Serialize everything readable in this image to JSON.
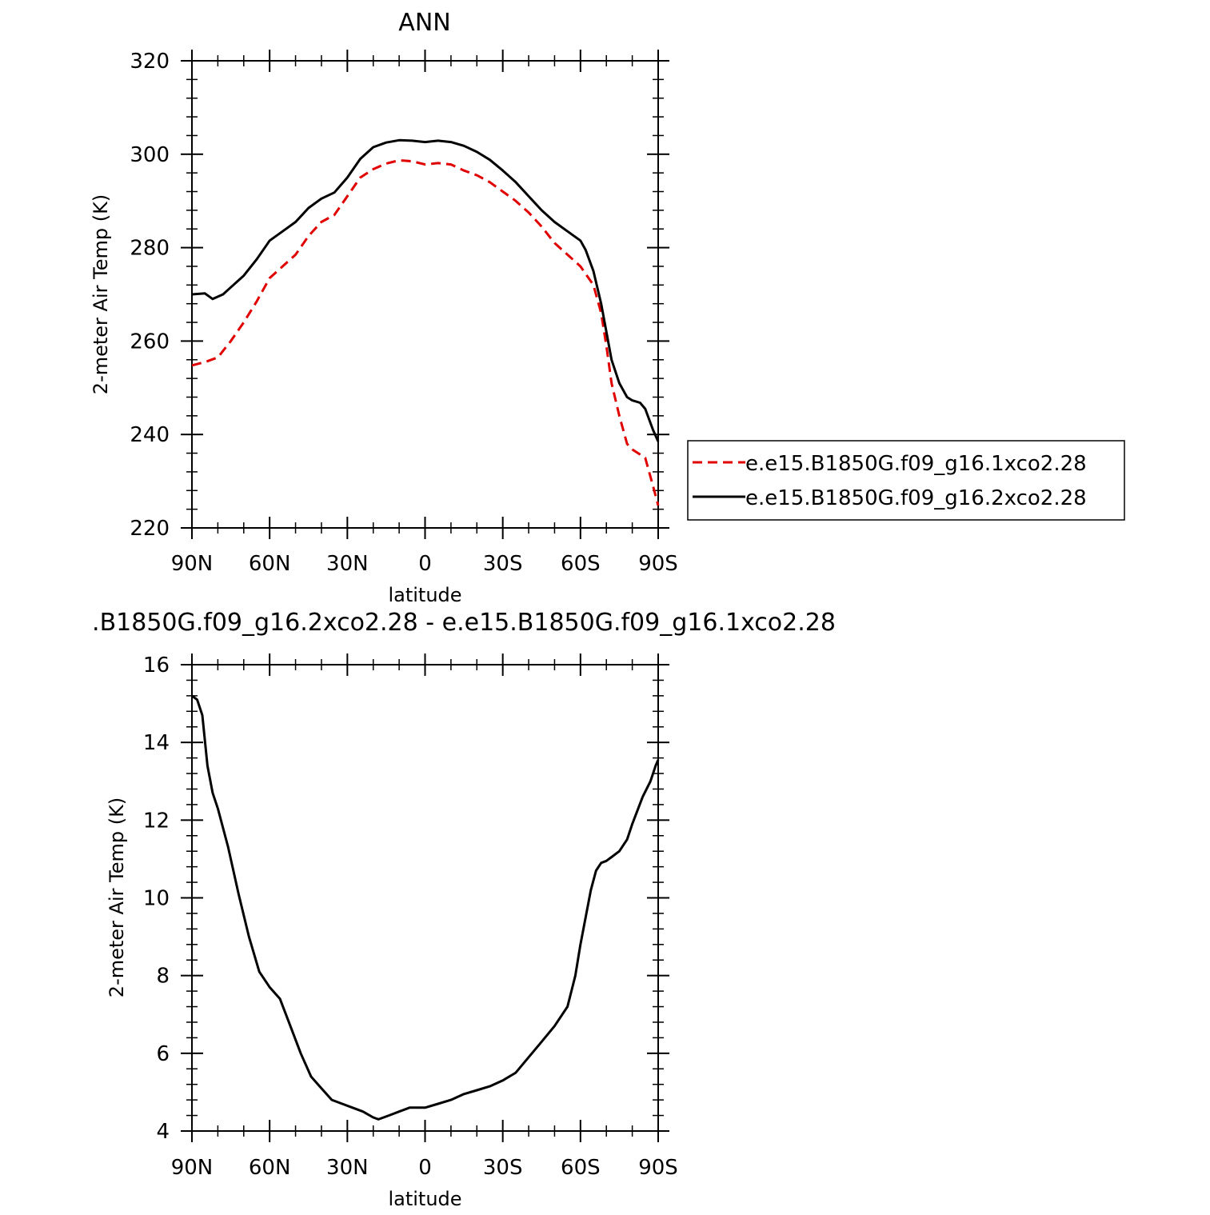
{
  "chart_data": [
    {
      "type": "line",
      "title": "ANN",
      "xlabel": "latitude",
      "ylabel": "2-meter Air Temp (K)",
      "xlim": [
        90,
        -90
      ],
      "ylim": [
        220,
        320
      ],
      "x_ticks": [
        90,
        60,
        30,
        0,
        -30,
        -60,
        -90
      ],
      "x_tick_labels": [
        "90N",
        "60N",
        "30N",
        "0",
        "30S",
        "60S",
        "90S"
      ],
      "y_ticks": [
        220,
        240,
        260,
        280,
        300,
        320
      ],
      "y_tick_labels": [
        "220",
        "240",
        "260",
        "280",
        "300",
        "320"
      ],
      "legend_position": "right",
      "series": [
        {
          "name": "e.e15.B1850G.f09_g16.1xco2.28",
          "color": "#e00000",
          "dash": "dashed",
          "points": [
            [
              90,
              254.8
            ],
            [
              85,
              255.5
            ],
            [
              80,
              256.5
            ],
            [
              75,
              260
            ],
            [
              70,
              264
            ],
            [
              65,
              268.5
            ],
            [
              60,
              273.5
            ],
            [
              55,
              276
            ],
            [
              50,
              278.5
            ],
            [
              45,
              282.5
            ],
            [
              40,
              285.5
            ],
            [
              35,
              287
            ],
            [
              30,
              291
            ],
            [
              25,
              295
            ],
            [
              20,
              296.8
            ],
            [
              15,
              298
            ],
            [
              10,
              298.7
            ],
            [
              5,
              298.5
            ],
            [
              0,
              297.8
            ],
            [
              -5,
              298.1
            ],
            [
              -10,
              297.8
            ],
            [
              -15,
              296.5
            ],
            [
              -20,
              295.5
            ],
            [
              -25,
              294
            ],
            [
              -30,
              292
            ],
            [
              -35,
              290
            ],
            [
              -40,
              287.5
            ],
            [
              -45,
              284.5
            ],
            [
              -50,
              281
            ],
            [
              -55,
              278.5
            ],
            [
              -60,
              276
            ],
            [
              -65,
              272
            ],
            [
              -68,
              266
            ],
            [
              -70,
              259
            ],
            [
              -72,
              251
            ],
            [
              -75,
              244
            ],
            [
              -78,
              238
            ],
            [
              -80,
              236.8
            ],
            [
              -85,
              235
            ],
            [
              -88,
              229
            ],
            [
              -90,
              224.8
            ]
          ]
        },
        {
          "name": "e.e15.B1850G.f09_g16.2xco2.28",
          "color": "#000000",
          "dash": "solid",
          "points": [
            [
              90,
              270
            ],
            [
              85,
              270.2
            ],
            [
              82,
              269
            ],
            [
              78,
              270
            ],
            [
              75,
              271.5
            ],
            [
              70,
              274
            ],
            [
              65,
              277.5
            ],
            [
              60,
              281.5
            ],
            [
              55,
              283.5
            ],
            [
              50,
              285.5
            ],
            [
              45,
              288.5
            ],
            [
              40,
              290.5
            ],
            [
              35,
              291.8
            ],
            [
              30,
              295
            ],
            [
              25,
              299
            ],
            [
              20,
              301.5
            ],
            [
              15,
              302.5
            ],
            [
              10,
              303
            ],
            [
              5,
              302.9
            ],
            [
              0,
              302.6
            ],
            [
              -5,
              302.9
            ],
            [
              -10,
              302.6
            ],
            [
              -15,
              301.8
            ],
            [
              -20,
              300.5
            ],
            [
              -25,
              298.8
            ],
            [
              -30,
              296.5
            ],
            [
              -35,
              294
            ],
            [
              -40,
              291
            ],
            [
              -45,
              288
            ],
            [
              -50,
              285.5
            ],
            [
              -55,
              283.5
            ],
            [
              -60,
              281.5
            ],
            [
              -62,
              279.5
            ],
            [
              -65,
              275
            ],
            [
              -68,
              268
            ],
            [
              -70,
              262
            ],
            [
              -72,
              256
            ],
            [
              -75,
              251
            ],
            [
              -78,
              248
            ],
            [
              -80,
              247.3
            ],
            [
              -83,
              246.8
            ],
            [
              -85,
              245.5
            ],
            [
              -88,
              241
            ],
            [
              -90,
              238.5
            ]
          ]
        }
      ]
    },
    {
      "type": "line",
      "title": ".B1850G.f09_g16.2xco2.28 - e.e15.B1850G.f09_g16.1xco2.28",
      "xlabel": "latitude",
      "ylabel": "2-meter Air Temp (K)",
      "xlim": [
        90,
        -90
      ],
      "ylim": [
        4,
        16
      ],
      "x_ticks": [
        90,
        60,
        30,
        0,
        -30,
        -60,
        -90
      ],
      "x_tick_labels": [
        "90N",
        "60N",
        "30N",
        "0",
        "30S",
        "60S",
        "90S"
      ],
      "y_ticks": [
        4,
        6,
        8,
        10,
        12,
        14,
        16
      ],
      "y_tick_labels": [
        "4",
        "6",
        "8",
        "10",
        "12",
        "14",
        "16"
      ],
      "series": [
        {
          "color": "#000000",
          "dash": "solid",
          "points": [
            [
              90,
              15.2
            ],
            [
              88,
              15.1
            ],
            [
              86,
              14.7
            ],
            [
              84,
              13.4
            ],
            [
              82,
              12.7
            ],
            [
              80,
              12.3
            ],
            [
              76,
              11.3
            ],
            [
              72,
              10.1
            ],
            [
              68,
              9.0
            ],
            [
              64,
              8.1
            ],
            [
              60,
              7.7
            ],
            [
              56,
              7.4
            ],
            [
              52,
              6.7
            ],
            [
              48,
              6.0
            ],
            [
              44,
              5.4
            ],
            [
              40,
              5.1
            ],
            [
              36,
              4.8
            ],
            [
              32,
              4.7
            ],
            [
              28,
              4.6
            ],
            [
              24,
              4.5
            ],
            [
              20,
              4.35
            ],
            [
              18,
              4.3
            ],
            [
              14,
              4.4
            ],
            [
              10,
              4.5
            ],
            [
              6,
              4.6
            ],
            [
              0,
              4.6
            ],
            [
              -5,
              4.7
            ],
            [
              -10,
              4.8
            ],
            [
              -15,
              4.95
            ],
            [
              -20,
              5.05
            ],
            [
              -25,
              5.15
            ],
            [
              -30,
              5.3
            ],
            [
              -35,
              5.5
            ],
            [
              -40,
              5.9
            ],
            [
              -45,
              6.3
            ],
            [
              -50,
              6.7
            ],
            [
              -55,
              7.2
            ],
            [
              -58,
              8.0
            ],
            [
              -60,
              8.8
            ],
            [
              -62,
              9.5
            ],
            [
              -64,
              10.2
            ],
            [
              -66,
              10.7
            ],
            [
              -68,
              10.9
            ],
            [
              -70,
              10.95
            ],
            [
              -72,
              11.05
            ],
            [
              -75,
              11.2
            ],
            [
              -78,
              11.5
            ],
            [
              -80,
              11.9
            ],
            [
              -84,
              12.6
            ],
            [
              -87,
              13.0
            ],
            [
              -89,
              13.4
            ],
            [
              -90,
              13.55
            ]
          ]
        }
      ]
    }
  ]
}
